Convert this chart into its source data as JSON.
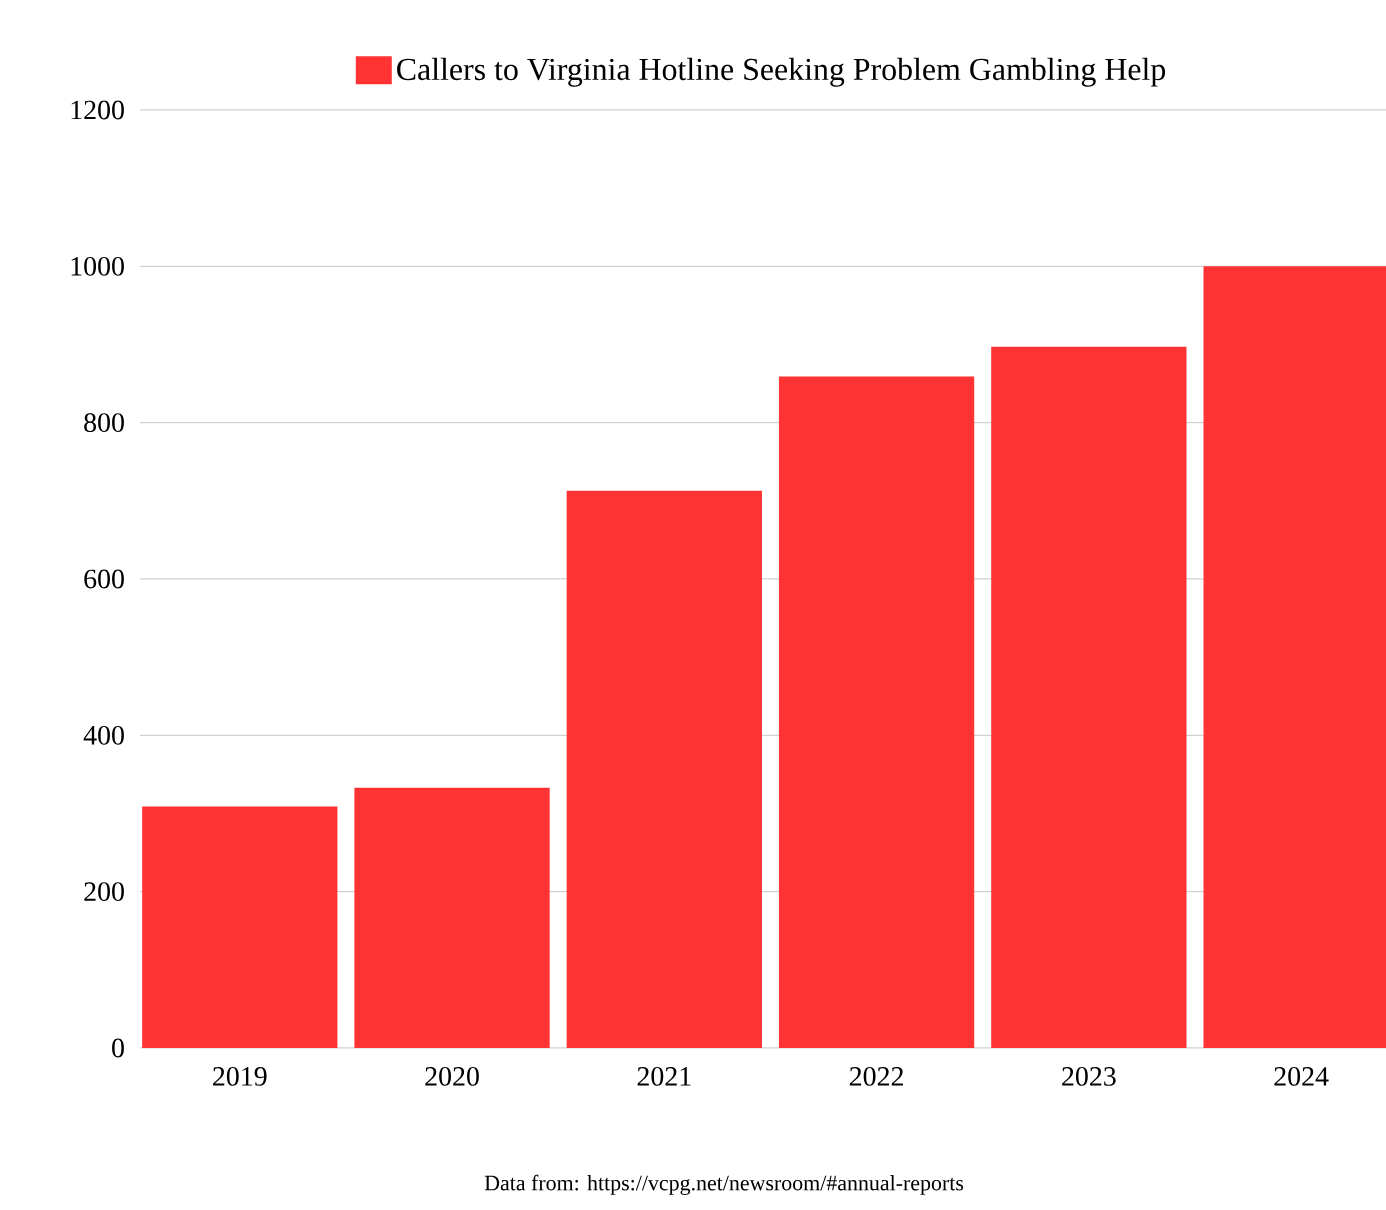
{
  "chart_data": {
    "type": "bar",
    "categories": [
      "2019",
      "2020",
      "2021",
      "2022",
      "2023",
      "2024"
    ],
    "series": [
      {
        "name": "Callers to Virginia Hotline Seeking Problem Gambling Help",
        "color": "#ff3333",
        "values": [
          309,
          333,
          713,
          859,
          897,
          1000
        ]
      }
    ],
    "ylim": [
      0,
      1200
    ],
    "yticks": [
      0,
      200,
      400,
      600,
      800,
      1000,
      1200
    ],
    "grid": "y",
    "legend": "top",
    "annotations": [
      "Data from: https://vcpg.net/newsroom/#annual-reports"
    ]
  }
}
